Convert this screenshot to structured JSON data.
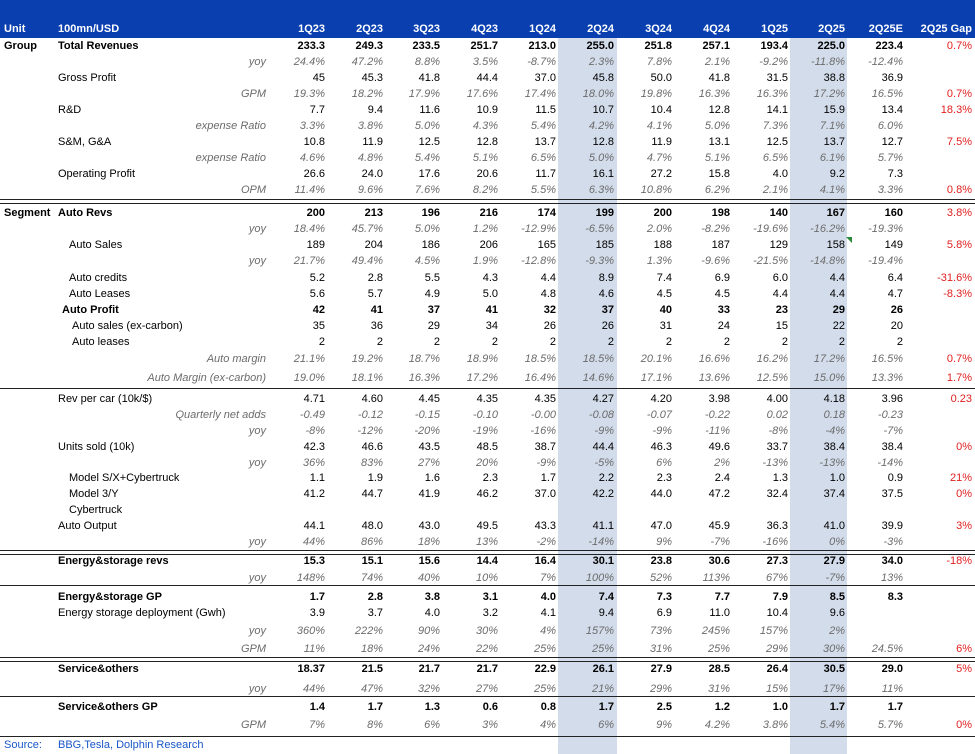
{
  "header": {
    "unit_label": "Unit",
    "unit_value": "100mn/USD",
    "columns": [
      "1Q23",
      "2Q23",
      "3Q23",
      "4Q23",
      "1Q24",
      "2Q24",
      "3Q24",
      "4Q24",
      "1Q25",
      "2Q25",
      "2Q25E",
      "2Q25 Gap"
    ]
  },
  "table": {
    "rows": [
      {
        "group": "Group",
        "label": "Total Revenues",
        "style": "bold",
        "values": [
          "233.3",
          "249.3",
          "233.5",
          "251.7",
          "213.0",
          "255.0",
          "251.8",
          "257.1",
          "193.4",
          "225.0",
          "223.4"
        ],
        "gap": "0.7%"
      },
      {
        "group": "",
        "label": "yoy",
        "style": "it",
        "values": [
          "24.4%",
          "47.2%",
          "8.8%",
          "3.5%",
          "-8.7%",
          "2.3%",
          "7.8%",
          "2.1%",
          "-9.2%",
          "-11.8%",
          "-12.4%"
        ],
        "gap": ""
      },
      {
        "group": "",
        "label": "Gross Profit",
        "style": "normal",
        "values": [
          "45",
          "45.3",
          "41.8",
          "44.4",
          "37.0",
          "45.8",
          "50.0",
          "41.8",
          "31.5",
          "38.8",
          "36.9"
        ],
        "gap": ""
      },
      {
        "group": "",
        "label": "GPM",
        "style": "it",
        "values": [
          "19.3%",
          "18.2%",
          "17.9%",
          "17.6%",
          "17.4%",
          "18.0%",
          "19.8%",
          "16.3%",
          "16.3%",
          "17.2%",
          "16.5%"
        ],
        "gap": "0.7%"
      },
      {
        "group": "",
        "label": "R&D",
        "style": "normal",
        "values": [
          "7.7",
          "9.4",
          "11.6",
          "10.9",
          "11.5",
          "10.7",
          "10.4",
          "12.8",
          "14.1",
          "15.9",
          "13.4"
        ],
        "gap": "18.3%"
      },
      {
        "group": "",
        "label": "expense Ratio",
        "style": "it",
        "values": [
          "3.3%",
          "3.8%",
          "5.0%",
          "4.3%",
          "5.4%",
          "4.2%",
          "4.1%",
          "5.0%",
          "7.3%",
          "7.1%",
          "6.0%"
        ],
        "gap": ""
      },
      {
        "group": "",
        "label": "S&M, G&A",
        "style": "normal",
        "values": [
          "10.8",
          "11.9",
          "12.5",
          "12.8",
          "13.7",
          "12.8",
          "11.9",
          "13.1",
          "12.5",
          "13.7",
          "12.7"
        ],
        "gap": "7.5%"
      },
      {
        "group": "",
        "label": "expense Ratio",
        "style": "it",
        "values": [
          "4.6%",
          "4.8%",
          "5.4%",
          "5.1%",
          "6.5%",
          "5.0%",
          "4.7%",
          "5.1%",
          "6.5%",
          "6.1%",
          "5.7%"
        ],
        "gap": ""
      },
      {
        "group": "",
        "label": "Operating Profit",
        "style": "normal",
        "values": [
          "26.6",
          "24.0",
          "17.6",
          "20.6",
          "11.7",
          "16.1",
          "27.2",
          "15.8",
          "4.0",
          "9.2",
          "7.3"
        ],
        "gap": ""
      },
      {
        "group": "",
        "label": "OPM",
        "style": "it",
        "values": [
          "11.4%",
          "9.6%",
          "7.6%",
          "8.2%",
          "5.5%",
          "6.3%",
          "10.8%",
          "6.2%",
          "2.1%",
          "4.1%",
          "3.3%"
        ],
        "gap": "0.8%"
      },
      {
        "group": "Segment",
        "label": "Auto Revs",
        "style": "bold",
        "values": [
          "200",
          "213",
          "196",
          "216",
          "174",
          "199",
          "200",
          "198",
          "140",
          "167",
          "160"
        ],
        "gap": "3.8%"
      },
      {
        "group": "",
        "label": "yoy",
        "style": "it",
        "values": [
          "18.4%",
          "45.7%",
          "5.0%",
          "1.2%",
          "-12.9%",
          "-6.5%",
          "2.0%",
          "-8.2%",
          "-19.6%",
          "-16.2%",
          "-19.3%"
        ],
        "gap": ""
      },
      {
        "group": "",
        "label": "Auto Sales",
        "style": "normal",
        "values": [
          "189",
          "204",
          "186",
          "206",
          "165",
          "185",
          "188",
          "187",
          "129",
          "158",
          "149"
        ],
        "gap": "5.8%"
      },
      {
        "group": "",
        "label": "yoy",
        "style": "it",
        "values": [
          "21.7%",
          "49.4%",
          "4.5%",
          "1.9%",
          "-12.8%",
          "-9.3%",
          "1.3%",
          "-9.6%",
          "-21.5%",
          "-14.8%",
          "-19.4%"
        ],
        "gap": ""
      },
      {
        "group": "",
        "label": "Auto credits",
        "style": "normal",
        "values": [
          "5.2",
          "2.8",
          "5.5",
          "4.3",
          "4.4",
          "8.9",
          "7.4",
          "6.9",
          "6.0",
          "4.4",
          "6.4"
        ],
        "gap": "-31.6%"
      },
      {
        "group": "",
        "label": "Auto Leases",
        "style": "normal",
        "values": [
          "5.6",
          "5.7",
          "4.9",
          "5.0",
          "4.8",
          "4.6",
          "4.5",
          "4.5",
          "4.4",
          "4.4",
          "4.7"
        ],
        "gap": "-8.3%"
      },
      {
        "group": "",
        "label": "Auto Profit",
        "style": "bold",
        "values": [
          "42",
          "41",
          "37",
          "41",
          "32",
          "37",
          "40",
          "33",
          "23",
          "29",
          "26"
        ],
        "gap": ""
      },
      {
        "group": "",
        "label": "Auto sales (ex-carbon)",
        "style": "normal",
        "values": [
          "35",
          "36",
          "29",
          "34",
          "26",
          "26",
          "31",
          "24",
          "15",
          "22",
          "20"
        ],
        "gap": ""
      },
      {
        "group": "",
        "label": "Auto leases",
        "style": "normal",
        "values": [
          "2",
          "2",
          "2",
          "2",
          "2",
          "2",
          "2",
          "2",
          "2",
          "2",
          "2"
        ],
        "gap": ""
      },
      {
        "group": "",
        "label": "Auto margin",
        "style": "it",
        "values": [
          "21.1%",
          "19.2%",
          "18.7%",
          "18.9%",
          "18.5%",
          "18.5%",
          "20.1%",
          "16.6%",
          "16.2%",
          "17.2%",
          "16.5%"
        ],
        "gap": "0.7%"
      },
      {
        "group": "",
        "label": "Auto Margin  (ex-carbon)",
        "style": "it",
        "values": [
          "19.0%",
          "18.1%",
          "16.3%",
          "17.2%",
          "16.4%",
          "14.6%",
          "17.1%",
          "13.6%",
          "12.5%",
          "15.0%",
          "13.3%"
        ],
        "gap": "1.7%"
      },
      {
        "group": "",
        "label": "Rev per car  (10k/$)",
        "style": "normal",
        "values": [
          "4.71",
          "4.60",
          "4.45",
          "4.35",
          "4.35",
          "4.27",
          "4.20",
          "3.98",
          "4.00",
          "4.18",
          "3.96"
        ],
        "gap": "0.23"
      },
      {
        "group": "",
        "label": "Quarterly  net adds",
        "style": "it",
        "values": [
          "-0.49",
          "-0.12",
          "-0.15",
          "-0.10",
          "-0.00",
          "-0.08",
          "-0.07",
          "-0.22",
          "0.02",
          "0.18",
          "-0.23"
        ],
        "gap": ""
      },
      {
        "group": "",
        "label": "yoy",
        "style": "it",
        "values": [
          "-8%",
          "-12%",
          "-20%",
          "-19%",
          "-16%",
          "-9%",
          "-9%",
          "-11%",
          "-8%",
          "-4%",
          "-7%"
        ],
        "gap": ""
      },
      {
        "group": "",
        "label": "Units sold  (10k)",
        "style": "normal",
        "values": [
          "42.3",
          "46.6",
          "43.5",
          "48.5",
          "38.7",
          "44.4",
          "46.3",
          "49.6",
          "33.7",
          "38.4",
          "38.4"
        ],
        "gap": "0%"
      },
      {
        "group": "",
        "label": "yoy",
        "style": "it",
        "values": [
          "36%",
          "83%",
          "27%",
          "20%",
          "-9%",
          "-5%",
          "6%",
          "2%",
          "-13%",
          "-13%",
          "-14%"
        ],
        "gap": ""
      },
      {
        "group": "",
        "label": "Model S/X+Cybertruck",
        "style": "normal",
        "values": [
          "1.1",
          "1.9",
          "1.6",
          "2.3",
          "1.7",
          "2.2",
          "2.3",
          "2.4",
          "1.3",
          "1.0",
          "0.9"
        ],
        "gap": "21%"
      },
      {
        "group": "",
        "label": "Model 3/Y",
        "style": "normal",
        "values": [
          "41.2",
          "44.7",
          "41.9",
          "46.2",
          "37.0",
          "42.2",
          "44.0",
          "47.2",
          "32.4",
          "37.4",
          "37.5"
        ],
        "gap": "0%"
      },
      {
        "group": "",
        "label": "Cybertruck",
        "style": "normal",
        "values": [
          "",
          "",
          "",
          "",
          "",
          "",
          "",
          "",
          "",
          "",
          ""
        ],
        "gap": ""
      },
      {
        "group": "",
        "label": "Auto Output",
        "style": "normal",
        "values": [
          "44.1",
          "48.0",
          "43.0",
          "49.5",
          "43.3",
          "41.1",
          "47.0",
          "45.9",
          "36.3",
          "41.0",
          "39.9"
        ],
        "gap": "3%"
      },
      {
        "group": "",
        "label": "yoy",
        "style": "it",
        "values": [
          "44%",
          "86%",
          "18%",
          "13%",
          "-2%",
          "-14%",
          "9%",
          "-7%",
          "-16%",
          "0%",
          "-3%"
        ],
        "gap": ""
      },
      {
        "group": "",
        "label": "Energy&storage revs",
        "style": "bold",
        "values": [
          "15.3",
          "15.1",
          "15.6",
          "14.4",
          "16.4",
          "30.1",
          "23.8",
          "30.6",
          "27.3",
          "27.9",
          "34.0"
        ],
        "gap": "-18%"
      },
      {
        "group": "",
        "label": "yoy",
        "style": "it",
        "values": [
          "148%",
          "74%",
          "40%",
          "10%",
          "7%",
          "100%",
          "52%",
          "113%",
          "67%",
          "-7%",
          "13%"
        ],
        "gap": ""
      },
      {
        "group": "",
        "label": "Energy&storage GP",
        "style": "bold",
        "values": [
          "1.7",
          "2.8",
          "3.8",
          "3.1",
          "4.0",
          "7.4",
          "7.3",
          "7.7",
          "7.9",
          "8.5",
          "8.3"
        ],
        "gap": ""
      },
      {
        "group": "",
        "label": "Energy storage deployment (Gwh)",
        "style": "normal",
        "values": [
          "3.9",
          "3.7",
          "4.0",
          "3.2",
          "4.1",
          "9.4",
          "6.9",
          "11.0",
          "10.4",
          "9.6",
          ""
        ],
        "gap": ""
      },
      {
        "group": "",
        "label": "yoy",
        "style": "it",
        "values": [
          "360%",
          "222%",
          "90%",
          "30%",
          "4%",
          "157%",
          "73%",
          "245%",
          "157%",
          "2%",
          ""
        ],
        "gap": ""
      },
      {
        "group": "",
        "label": "GPM",
        "style": "it",
        "values": [
          "11%",
          "18%",
          "24%",
          "22%",
          "25%",
          "25%",
          "31%",
          "25%",
          "29%",
          "30%",
          "24.5%"
        ],
        "gap": "6%"
      },
      {
        "group": "",
        "label": "Service&others",
        "style": "bold",
        "values": [
          "18.37",
          "21.5",
          "21.7",
          "21.7",
          "22.9",
          "26.1",
          "27.9",
          "28.5",
          "26.4",
          "30.5",
          "29.0"
        ],
        "gap": "5%"
      },
      {
        "group": "",
        "label": "yoy",
        "style": "it",
        "values": [
          "44%",
          "47%",
          "32%",
          "27%",
          "25%",
          "21%",
          "29%",
          "31%",
          "15%",
          "17%",
          "11%"
        ],
        "gap": ""
      },
      {
        "group": "",
        "label": "Service&others GP",
        "style": "bold",
        "values": [
          "1.4",
          "1.7",
          "1.3",
          "0.6",
          "0.8",
          "1.7",
          "2.5",
          "1.2",
          "1.0",
          "1.7",
          "1.7"
        ],
        "gap": ""
      },
      {
        "group": "",
        "label": "GPM",
        "style": "it",
        "values": [
          "7%",
          "8%",
          "6%",
          "3%",
          "4%",
          "6%",
          "9%",
          "4.2%",
          "3.8%",
          "5.4%",
          "5.7%"
        ],
        "gap": "0%"
      }
    ]
  },
  "footer": {
    "source_label": "Source:",
    "source_value": "BBG,Tesla,  Dolphin Research"
  },
  "colors": {
    "header_bg": "#0a3fb0",
    "highlight_col": "#d3dcea",
    "gap_text": "#e02020",
    "italic_text": "#6b6b6b",
    "marker": "#2a8a3a"
  }
}
